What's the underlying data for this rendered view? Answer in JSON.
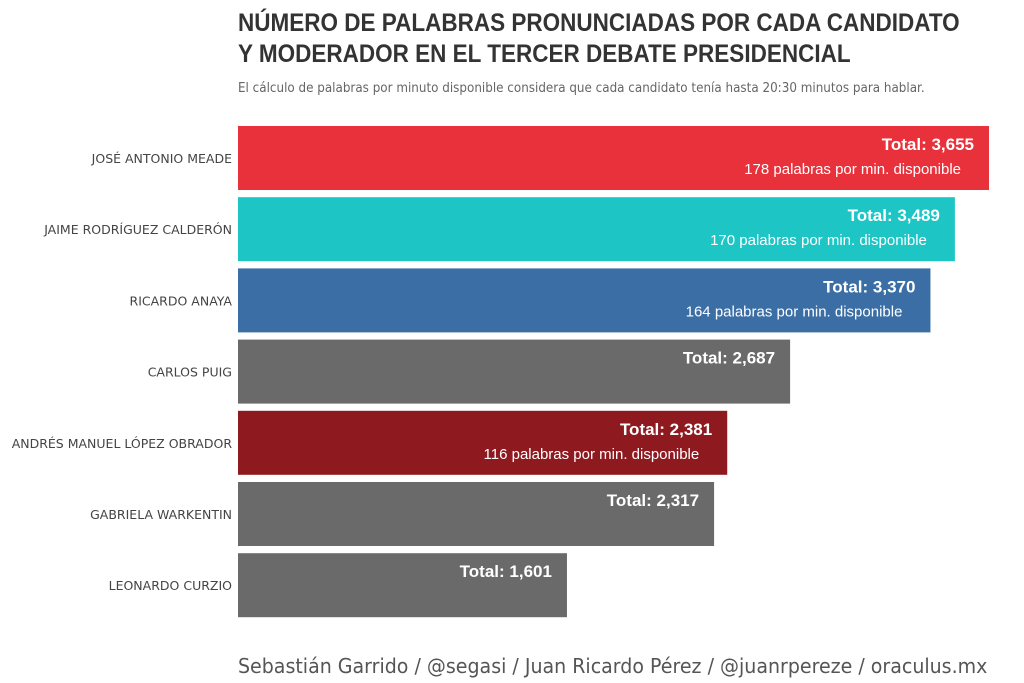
{
  "chart_data": {
    "type": "bar",
    "orientation": "horizontal",
    "title": "NÚMERO DE PALABRAS PRONUNCIADAS POR CADA CANDIDATO Y MODERADOR EN EL TERCER DEBATE PRESIDENCIAL",
    "title_lines": [
      "NÚMERO DE PALABRAS PRONUNCIADAS POR CADA CANDIDATO",
      "Y MODERADOR EN EL TERCER DEBATE PRESIDENCIAL"
    ],
    "subtitle": "El cálculo de palabras por minuto disponible considera que cada candidato tenía hasta 20:30 minutos para hablar.",
    "xlim": [
      0,
      3655
    ],
    "grid": false,
    "total_prefix": "Total: ",
    "categories": [
      "JOSÉ ANTONIO MEADE",
      "JAIME RODRÍGUEZ CALDERÓN",
      "RICARDO ANAYA",
      "CARLOS PUIG",
      "ANDRÉS MANUEL LÓPEZ OBRADOR",
      "GABRIELA WARKENTIN",
      "LEONARDO CURZIO"
    ],
    "values": [
      3655,
      3489,
      3370,
      2687,
      2381,
      2317,
      1601
    ],
    "total_labels": [
      "Total: 3,655",
      "Total: 3,489",
      "Total: 3,370",
      "Total: 2,687",
      "Total: 2,381",
      "Total: 2,317",
      "Total: 1,601"
    ],
    "rate_labels": [
      "178 palabras por min. disponible",
      "170 palabras por min. disponible",
      "164 palabras por min. disponible",
      "",
      "116 palabras por min. disponible",
      "",
      ""
    ],
    "colors": [
      "#E8313B",
      "#1DC5C5",
      "#3A6EA5",
      "#6A6A6A",
      "#8E1A20",
      "#6A6A6A",
      "#6A6A6A"
    ]
  },
  "credit": "Sebastián Garrido / @segasi / Juan Ricardo Pérez / @juanrpereze / oraculus.mx"
}
